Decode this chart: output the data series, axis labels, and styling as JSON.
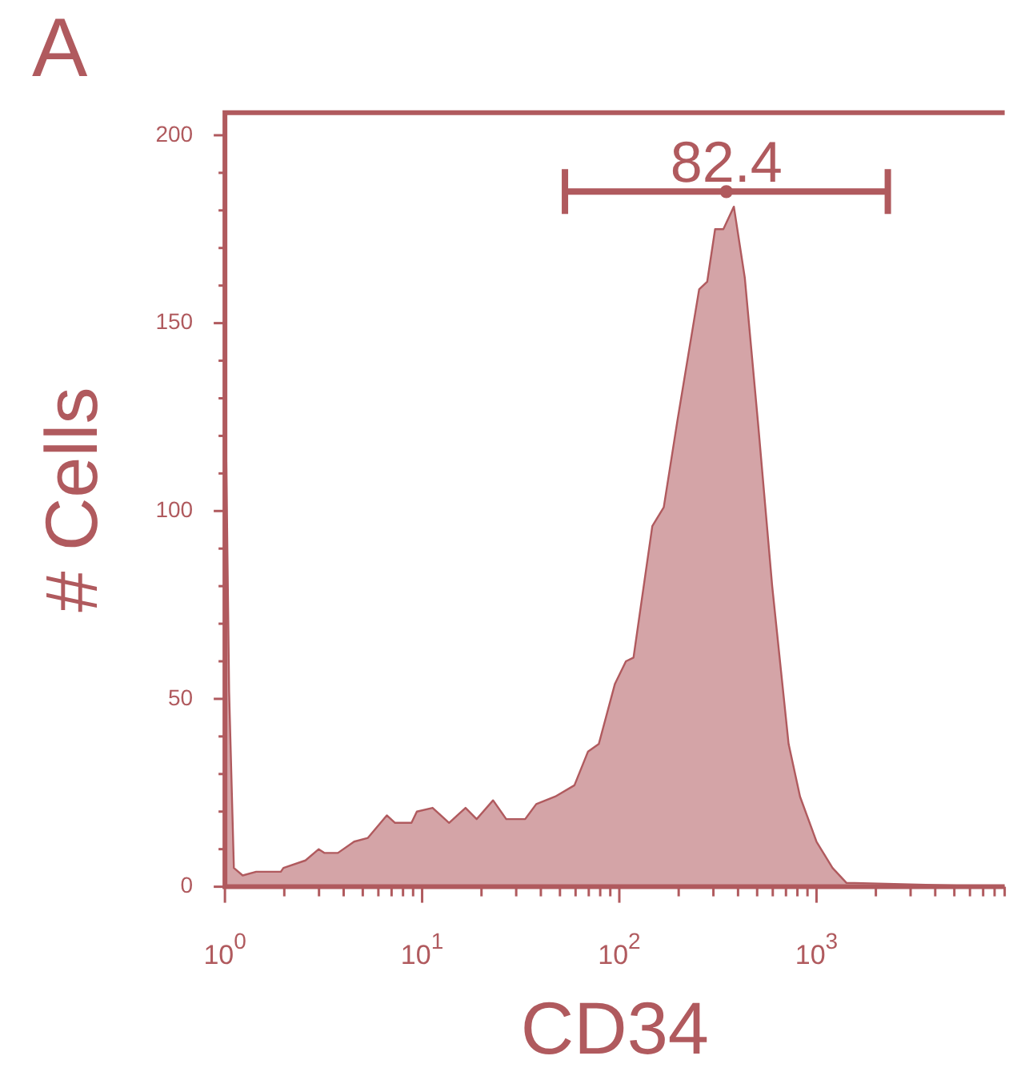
{
  "chart_data": {
    "type": "area",
    "title": "A",
    "xlabel": "CD34",
    "ylabel": "# Cells",
    "log": "x",
    "xlim": [
      1,
      9000
    ],
    "ylim": [
      0,
      206
    ],
    "xticks": [
      {
        "value": 1,
        "label": "10$^{0}$"
      },
      {
        "value": 2,
        "label": null
      },
      {
        "value": 3,
        "label": null
      },
      {
        "value": 4,
        "label": null
      },
      {
        "value": 5,
        "label": null
      },
      {
        "value": 6,
        "label": null
      },
      {
        "value": 7,
        "label": null
      },
      {
        "value": 8,
        "label": null
      },
      {
        "value": 9,
        "label": null
      },
      {
        "value": 10,
        "label": "10$^{1}$"
      },
      {
        "value": 20,
        "label": null
      },
      {
        "value": 30,
        "label": null
      },
      {
        "value": 40,
        "label": null
      },
      {
        "value": 50,
        "label": null
      },
      {
        "value": 60,
        "label": null
      },
      {
        "value": 70,
        "label": null
      },
      {
        "value": 80,
        "label": null
      },
      {
        "value": 90,
        "label": null
      },
      {
        "value": 100,
        "label": "10$^{2}$"
      },
      {
        "value": 200,
        "label": null
      },
      {
        "value": 300,
        "label": null
      },
      {
        "value": 400,
        "label": null
      },
      {
        "value": 500,
        "label": null
      },
      {
        "value": 600,
        "label": null
      },
      {
        "value": 700,
        "label": null
      },
      {
        "value": 800,
        "label": null
      },
      {
        "value": 900,
        "label": null
      },
      {
        "value": 1000,
        "label": "10$^{3}$"
      },
      {
        "value": 2000,
        "label": null
      },
      {
        "value": 3000,
        "label": null
      },
      {
        "value": 4000,
        "label": null
      },
      {
        "value": 5000,
        "label": null
      },
      {
        "value": 6000,
        "label": null
      },
      {
        "value": 7000,
        "label": null
      },
      {
        "value": 8000,
        "label": null
      },
      {
        "value": 9000,
        "label": null
      }
    ],
    "yticks": [
      0,
      {
        "value": 10,
        "label": null
      },
      {
        "value": 20,
        "label": null
      },
      {
        "value": 30,
        "label": null
      },
      {
        "value": 40,
        "label": null
      },
      50,
      {
        "value": 60,
        "label": null
      },
      {
        "value": 70,
        "label": null
      },
      {
        "value": 80,
        "label": null
      },
      {
        "value": 90,
        "label": null
      },
      100,
      {
        "value": 110,
        "label": null
      },
      {
        "value": 120,
        "label": null
      },
      {
        "value": 130,
        "label": null
      },
      {
        "value": 140,
        "label": null
      },
      150,
      {
        "value": 160,
        "label": null
      },
      {
        "value": 170,
        "label": null
      },
      {
        "value": 180,
        "label": null
      },
      {
        "value": 190,
        "label": null
      },
      200
    ],
    "annotations": [
      {
        "text": "82.4",
        "x": 349,
        "y": 185
      }
    ],
    "series": [
      {
        "color": "#b05a5e",
        "x": [
          1,
          1.05,
          1.11,
          1.23,
          1.44,
          1.92,
          1.98,
          2.56,
          2.99,
          3.19,
          3.74,
          4.52,
          5.31,
          6.62,
          7.29,
          8.83,
          9.4,
          11.3,
          13.7,
          16.6,
          18.9,
          22.9,
          26.7,
          33.3,
          37.9,
          47.3,
          59.2,
          69.4,
          78.7,
          95,
          108,
          118,
          147,
          168,
          197,
          254,
          279,
          306,
          337,
          381,
          433,
          508,
          596,
          722,
          825,
          1000,
          1206,
          1420,
          1560,
          9000
        ],
        "values": [
          143,
          52,
          5,
          3,
          4,
          4,
          5,
          7,
          10,
          9,
          9,
          12,
          13,
          19,
          17,
          17,
          20,
          21,
          17,
          21,
          18,
          23,
          18,
          18,
          22,
          24,
          27,
          36,
          38,
          54,
          60,
          61,
          96,
          101,
          124,
          159,
          161,
          175,
          175,
          181,
          162,
          122,
          80,
          38,
          24,
          12,
          5,
          1,
          1,
          0
        ]
      },
      {
        "type": "scatter",
        "color": "#b05a5e",
        "x": [
          349
        ],
        "values": [
          185
        ],
        "xerrors": [
          [
            53,
            2300
          ]
        ]
      }
    ]
  }
}
